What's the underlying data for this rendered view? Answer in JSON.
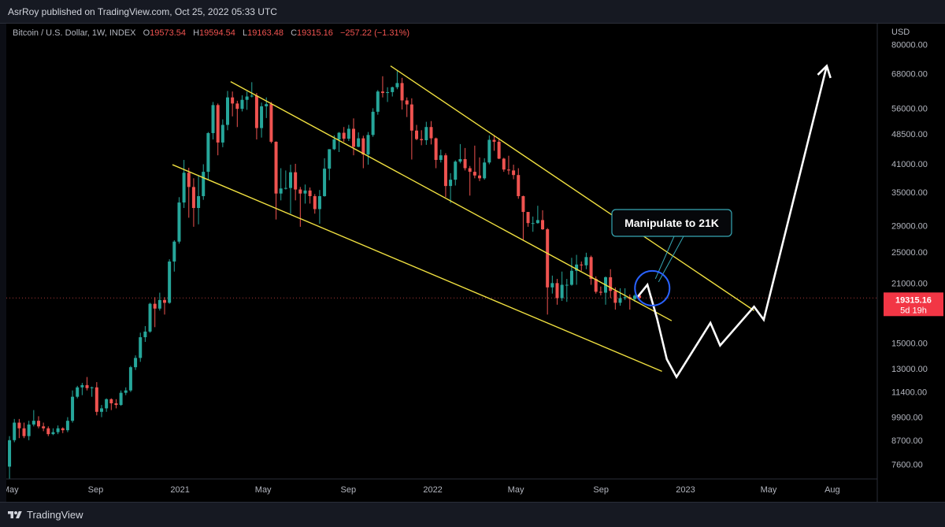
{
  "header": {
    "published": "AsrRoy published on TradingView.com, Oct 25, 2022 05:33 UTC"
  },
  "legend": {
    "symbol": "Bitcoin / U.S. Dollar, 1W, INDEX",
    "o_label": "O",
    "o_value": "19573.54",
    "h_label": "H",
    "h_value": "19594.54",
    "l_label": "L",
    "l_value": "19163.48",
    "c_label": "C",
    "c_value": "19315.16",
    "change": "−257.22 (−1.31%)"
  },
  "price_axis": {
    "currency": "USD",
    "last_price": "19315.16",
    "countdown": "5d 19h"
  },
  "annotation": {
    "text": "Manipulate to 21K"
  },
  "footer": {
    "brand": "TradingView"
  },
  "colors": {
    "up": "#26a69a",
    "down": "#ef5350",
    "trendline": "#f0e040",
    "projection": "#ffffff",
    "circle": "#2962ff",
    "callout": "#36a7b4"
  },
  "chart_data": {
    "type": "candlestick",
    "yscale": "log",
    "ylim": [
      7000,
      90000
    ],
    "y_ticks": [
      7600,
      8700,
      9900,
      11400,
      13000,
      15000,
      17000,
      19315.16,
      21000,
      25000,
      29000,
      35000,
      41000,
      48500,
      56000,
      68000,
      80000
    ],
    "y_tick_labels": [
      "7600.00",
      "8700.00",
      "9900.00",
      "11400.00",
      "13000.00",
      "15000.00",
      "",
      "19315.16",
      "21000.00",
      "25000.00",
      "29000.00",
      "35000.00",
      "41000.00",
      "48500.00",
      "56000.00",
      "68000.00",
      "80000.00"
    ],
    "x_ticks": [
      {
        "date": "2020-05-01",
        "label": "May"
      },
      {
        "date": "2020-09-01",
        "label": "Sep"
      },
      {
        "date": "2021-01-01",
        "label": "2021"
      },
      {
        "date": "2021-05-01",
        "label": "May"
      },
      {
        "date": "2021-09-01",
        "label": "Sep"
      },
      {
        "date": "2022-01-01",
        "label": "2022"
      },
      {
        "date": "2022-05-01",
        "label": "May"
      },
      {
        "date": "2022-09-01",
        "label": "Sep"
      },
      {
        "date": "2023-01-01",
        "label": "2023"
      },
      {
        "date": "2023-05-01",
        "label": "May"
      },
      {
        "date": "2023-08-01",
        "label": "Aug"
      }
    ],
    "xlim": [
      "2020-04-25",
      "2023-10-05"
    ],
    "candles": [
      [
        "2020-04-27",
        7500,
        8900,
        7000,
        8700
      ],
      [
        "2020-05-04",
        8700,
        9800,
        8600,
        9600
      ],
      [
        "2020-05-11",
        9600,
        9800,
        8800,
        9300
      ],
      [
        "2020-05-18",
        9300,
        9600,
        8800,
        8900
      ],
      [
        "2020-05-25",
        8900,
        9700,
        8700,
        9500
      ],
      [
        "2020-06-01",
        9500,
        10300,
        9400,
        9700
      ],
      [
        "2020-06-08",
        9700,
        9950,
        9300,
        9400
      ],
      [
        "2020-06-15",
        9400,
        9600,
        9150,
        9300
      ],
      [
        "2020-06-22",
        9300,
        9400,
        8900,
        9000
      ],
      [
        "2020-06-29",
        9000,
        9300,
        8950,
        9100
      ],
      [
        "2020-07-06",
        9100,
        9450,
        9000,
        9300
      ],
      [
        "2020-07-13",
        9300,
        9350,
        9050,
        9200
      ],
      [
        "2020-07-20",
        9200,
        9900,
        9100,
        9700
      ],
      [
        "2020-07-27",
        9700,
        11500,
        9600,
        11100
      ],
      [
        "2020-08-03",
        11100,
        11800,
        11000,
        11700
      ],
      [
        "2020-08-10",
        11700,
        12000,
        11200,
        11850
      ],
      [
        "2020-08-17",
        11850,
        12400,
        11500,
        11650
      ],
      [
        "2020-08-24",
        11650,
        11750,
        11100,
        11700
      ],
      [
        "2020-08-31",
        11700,
        12050,
        10000,
        10200
      ],
      [
        "2020-09-07",
        10200,
        10600,
        9900,
        10400
      ],
      [
        "2020-09-14",
        10400,
        11000,
        10200,
        10950
      ],
      [
        "2020-09-21",
        10950,
        11000,
        10300,
        10700
      ],
      [
        "2020-09-28",
        10700,
        10950,
        10400,
        10600
      ],
      [
        "2020-10-05",
        10600,
        11500,
        10550,
        11350
      ],
      [
        "2020-10-12",
        11350,
        11700,
        11200,
        11500
      ],
      [
        "2020-10-19",
        11500,
        13200,
        11400,
        13100
      ],
      [
        "2020-10-26",
        13100,
        14000,
        12900,
        13800
      ],
      [
        "2020-11-02",
        13800,
        15900,
        13500,
        15500
      ],
      [
        "2020-11-09",
        15500,
        16500,
        15100,
        16000
      ],
      [
        "2020-11-16",
        16000,
        18800,
        15900,
        18700
      ],
      [
        "2020-11-23",
        18700,
        19400,
        16400,
        18200
      ],
      [
        "2020-11-30",
        18200,
        19900,
        18000,
        19100
      ],
      [
        "2020-12-07",
        19100,
        19400,
        17600,
        18800
      ],
      [
        "2020-12-14",
        18800,
        24000,
        18700,
        23700
      ],
      [
        "2020-12-21",
        23700,
        26700,
        22400,
        26500
      ],
      [
        "2020-12-28",
        26500,
        34000,
        26200,
        33000
      ],
      [
        "2021-01-04",
        33000,
        41900,
        32000,
        39000
      ],
      [
        "2021-01-11",
        39000,
        40100,
        30300,
        36000
      ],
      [
        "2021-01-18",
        36000,
        37800,
        28800,
        32000
      ],
      [
        "2021-01-25",
        32000,
        38500,
        29200,
        34200
      ],
      [
        "2021-02-01",
        34200,
        40900,
        33500,
        39200
      ],
      [
        "2021-02-08",
        39200,
        49000,
        37400,
        48700
      ],
      [
        "2021-02-15",
        48700,
        58000,
        47000,
        57000
      ],
      [
        "2021-02-22",
        57000,
        57500,
        43000,
        46200
      ],
      [
        "2021-03-01",
        46200,
        52600,
        45000,
        51000
      ],
      [
        "2021-03-08",
        51000,
        61700,
        49500,
        59500
      ],
      [
        "2021-03-15",
        59500,
        61500,
        53500,
        57500
      ],
      [
        "2021-03-22",
        57500,
        58400,
        50400,
        55800
      ],
      [
        "2021-03-29",
        55800,
        60200,
        55000,
        58700
      ],
      [
        "2021-04-05",
        58700,
        61500,
        55500,
        59800
      ],
      [
        "2021-04-12",
        59800,
        64800,
        59500,
        60100
      ],
      [
        "2021-04-19",
        60100,
        61000,
        47000,
        50100
      ],
      [
        "2021-04-26",
        50100,
        57800,
        47500,
        56600
      ],
      [
        "2021-05-03",
        56600,
        59500,
        53000,
        57300
      ],
      [
        "2021-05-10",
        57300,
        58000,
        46000,
        46400
      ],
      [
        "2021-05-17",
        46400,
        46500,
        30000,
        34700
      ],
      [
        "2021-05-24",
        34700,
        40000,
        33400,
        35700
      ],
      [
        "2021-05-31",
        35700,
        39500,
        35500,
        35800
      ],
      [
        "2021-06-07",
        35800,
        40800,
        31000,
        39100
      ],
      [
        "2021-06-14",
        39100,
        41000,
        33400,
        35500
      ],
      [
        "2021-06-21",
        35500,
        36000,
        28800,
        34700
      ],
      [
        "2021-06-28",
        34700,
        36500,
        32800,
        35300
      ],
      [
        "2021-07-05",
        35300,
        35900,
        32800,
        34200
      ],
      [
        "2021-07-12",
        34200,
        34600,
        31000,
        31800
      ],
      [
        "2021-07-19",
        31800,
        35400,
        29300,
        34200
      ],
      [
        "2021-07-26",
        34200,
        42300,
        34100,
        39900
      ],
      [
        "2021-08-02",
        39900,
        44500,
        37400,
        44500
      ],
      [
        "2021-08-09",
        44500,
        48100,
        44300,
        47000
      ],
      [
        "2021-08-16",
        47000,
        49000,
        43800,
        48800
      ],
      [
        "2021-08-23",
        48800,
        50400,
        46400,
        47200
      ],
      [
        "2021-08-30",
        47200,
        51000,
        46600,
        49900
      ],
      [
        "2021-09-06",
        49900,
        52900,
        43000,
        45100
      ],
      [
        "2021-09-13",
        45100,
        48900,
        45000,
        47300
      ],
      [
        "2021-09-20",
        47300,
        48000,
        40000,
        43200
      ],
      [
        "2021-09-27",
        43200,
        49000,
        40800,
        48200
      ],
      [
        "2021-10-04",
        48200,
        56000,
        47700,
        54900
      ],
      [
        "2021-10-11",
        54900,
        62000,
        54000,
        61500
      ],
      [
        "2021-10-18",
        61500,
        67000,
        59500,
        61000
      ],
      [
        "2021-10-25",
        61000,
        63000,
        58000,
        61300
      ],
      [
        "2021-11-01",
        61300,
        63200,
        59800,
        63000
      ],
      [
        "2021-11-08",
        63000,
        69000,
        62300,
        64500
      ],
      [
        "2021-11-15",
        64500,
        66400,
        55600,
        58500
      ],
      [
        "2021-11-22",
        58500,
        59500,
        53300,
        57200
      ],
      [
        "2021-11-29",
        57200,
        59200,
        42000,
        49400
      ],
      [
        "2021-12-06",
        49400,
        51000,
        46800,
        47100
      ],
      [
        "2021-12-13",
        47100,
        49500,
        45500,
        46800
      ],
      [
        "2021-12-20",
        46800,
        51900,
        45600,
        50400
      ],
      [
        "2021-12-27",
        50400,
        52100,
        45700,
        47300
      ],
      [
        "2022-01-03",
        47300,
        47500,
        40000,
        41900
      ],
      [
        "2022-01-10",
        41900,
        44400,
        41300,
        43000
      ],
      [
        "2022-01-17",
        43000,
        43500,
        34000,
        36200
      ],
      [
        "2022-01-24",
        36200,
        38900,
        32900,
        37500
      ],
      [
        "2022-01-31",
        37500,
        41800,
        36300,
        41500
      ],
      [
        "2022-02-07",
        41500,
        45800,
        41100,
        42100
      ],
      [
        "2022-02-14",
        42100,
        44800,
        39500,
        40000
      ],
      [
        "2022-02-21",
        40000,
        40500,
        34300,
        39200
      ],
      [
        "2022-02-28",
        39200,
        45400,
        37800,
        38400
      ],
      [
        "2022-03-07",
        38400,
        42500,
        37200,
        37800
      ],
      [
        "2022-03-14",
        37800,
        42300,
        37500,
        41300
      ],
      [
        "2022-03-21",
        41300,
        48100,
        40900,
        46900
      ],
      [
        "2022-03-28",
        46900,
        48200,
        44100,
        46400
      ],
      [
        "2022-04-04",
        46400,
        47400,
        42100,
        42200
      ],
      [
        "2022-04-11",
        42200,
        42400,
        39200,
        39700
      ],
      [
        "2022-04-18",
        39700,
        42900,
        38600,
        39500
      ],
      [
        "2022-04-25",
        39500,
        40800,
        37600,
        38500
      ],
      [
        "2022-05-02",
        38500,
        40000,
        33700,
        34200
      ],
      [
        "2022-05-09",
        34200,
        34300,
        26700,
        31300
      ],
      [
        "2022-05-16",
        31300,
        31200,
        28800,
        29400
      ],
      [
        "2022-05-23",
        29400,
        30500,
        28000,
        29400
      ],
      [
        "2022-05-30",
        29400,
        32400,
        29300,
        29900
      ],
      [
        "2022-06-06",
        29900,
        31600,
        28300,
        28400
      ],
      [
        "2022-06-13",
        28400,
        28600,
        17600,
        20500
      ],
      [
        "2022-06-20",
        20500,
        21900,
        19800,
        21000
      ],
      [
        "2022-06-27",
        21000,
        21500,
        18600,
        19300
      ],
      [
        "2022-07-04",
        19300,
        22400,
        19000,
        20800
      ],
      [
        "2022-07-11",
        20800,
        21500,
        18900,
        20800
      ],
      [
        "2022-07-18",
        20800,
        24200,
        20700,
        22500
      ],
      [
        "2022-07-25",
        22500,
        24600,
        20800,
        23300
      ],
      [
        "2022-08-01",
        23300,
        23700,
        22500,
        23200
      ],
      [
        "2022-08-08",
        23200,
        24900,
        22700,
        24300
      ],
      [
        "2022-08-15",
        24300,
        24500,
        20800,
        21500
      ],
      [
        "2022-08-22",
        21500,
        21800,
        19800,
        20000
      ],
      [
        "2022-08-29",
        20000,
        20600,
        19600,
        19900
      ],
      [
        "2022-09-05",
        19900,
        21800,
        18600,
        21700
      ],
      [
        "2022-09-12",
        21700,
        22700,
        19300,
        20100
      ],
      [
        "2022-09-19",
        20100,
        20500,
        18100,
        18800
      ],
      [
        "2022-09-26",
        18800,
        20400,
        18500,
        19300
      ],
      [
        "2022-10-03",
        19300,
        20400,
        19100,
        19400
      ],
      [
        "2022-10-10",
        19400,
        19700,
        18100,
        19200
      ],
      [
        "2022-10-17",
        19200,
        19700,
        18900,
        19570
      ],
      [
        "2022-10-24",
        19573.54,
        19594.54,
        19163.48,
        19315.16
      ]
    ],
    "trendlines": [
      {
        "name": "channel-upper",
        "points": [
          [
            "2021-03-15",
            65000
          ],
          [
            "2022-12-12",
            17000
          ]
        ]
      },
      {
        "name": "channel-lower",
        "points": [
          [
            "2020-12-21",
            40800
          ],
          [
            "2022-11-28",
            12800
          ]
        ]
      },
      {
        "name": "outer-upper",
        "points": [
          [
            "2021-11-01",
            71000
          ],
          [
            "2023-04-10",
            18000
          ]
        ]
      }
    ],
    "projection": {
      "points": [
        [
          "2022-10-24",
          19450
        ],
        [
          "2022-11-07",
          20800
        ],
        [
          "2022-11-21",
          17200
        ],
        [
          "2022-12-05",
          13700
        ],
        [
          "2022-12-19",
          12400
        ],
        [
          "2023-02-06",
          16800
        ],
        [
          "2023-02-20",
          14800
        ],
        [
          "2023-04-10",
          18400
        ],
        [
          "2023-04-24",
          17100
        ],
        [
          "2023-07-24",
          71000
        ]
      ],
      "arrow_tip": [
        "2023-07-24",
        71000
      ]
    },
    "highlight_circle": {
      "date": "2022-11-14",
      "price": 20400
    }
  }
}
